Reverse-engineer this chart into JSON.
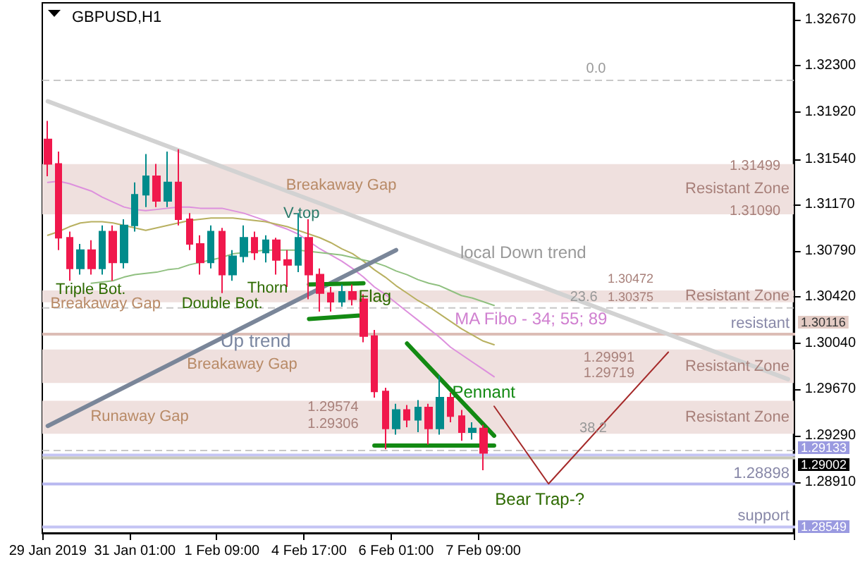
{
  "chart_data": {
    "type": "candlestick",
    "title": "GBPUSD,H1",
    "categories": [
      "29 Jan 2019",
      null,
      null,
      null,
      null,
      null,
      null,
      null,
      "31 Jan 01:00",
      null,
      null,
      null,
      null,
      null,
      null,
      null,
      "1 Feb 09:00",
      null,
      null,
      null,
      null,
      null,
      null,
      null,
      "4 Feb 17:00",
      null,
      null,
      null,
      null,
      null,
      null,
      null,
      "6 Feb 01:00",
      null,
      null,
      null,
      null,
      null,
      null,
      null,
      "7 Feb 09:00",
      null,
      null,
      null,
      null,
      null,
      null,
      null,
      null,
      null,
      null,
      null,
      null,
      null,
      null,
      null,
      null,
      null,
      null,
      null,
      null,
      null,
      null,
      null,
      null,
      null,
      null,
      null,
      null
    ],
    "ohlc": [
      [
        1.317,
        1.3185,
        1.314,
        1.315
      ],
      [
        1.315,
        1.316,
        1.308,
        1.309
      ],
      [
        1.309,
        1.3095,
        1.3055,
        1.3065
      ],
      [
        1.3065,
        1.3085,
        1.306,
        1.308
      ],
      [
        1.308,
        1.3088,
        1.306,
        1.3065
      ],
      [
        1.3065,
        1.31,
        1.306,
        1.3095
      ],
      [
        1.3095,
        1.31,
        1.3055,
        1.307
      ],
      [
        1.307,
        1.3105,
        1.3065,
        1.31
      ],
      [
        1.31,
        1.3135,
        1.3095,
        1.3125
      ],
      [
        1.3125,
        1.3158,
        1.3115,
        1.314
      ],
      [
        1.314,
        1.315,
        1.3115,
        1.312
      ],
      [
        1.312,
        1.316,
        1.3115,
        1.3135
      ],
      [
        1.3135,
        1.3162,
        1.31,
        1.3105
      ],
      [
        1.3105,
        1.311,
        1.308,
        1.3085
      ],
      [
        1.3085,
        1.3092,
        1.306,
        1.307
      ],
      [
        1.307,
        1.31,
        1.3065,
        1.3095
      ],
      [
        1.3095,
        1.3098,
        1.3045,
        1.306
      ],
      [
        1.306,
        1.308,
        1.3055,
        1.3075
      ],
      [
        1.3075,
        1.31,
        1.307,
        1.309
      ],
      [
        1.309,
        1.3095,
        1.3072,
        1.3078
      ],
      [
        1.3078,
        1.3092,
        1.307,
        1.3088
      ],
      [
        1.3088,
        1.309,
        1.306,
        1.3072
      ],
      [
        1.3072,
        1.308,
        1.305,
        1.3068
      ],
      [
        1.3068,
        1.311,
        1.3062,
        1.309
      ],
      [
        1.309,
        1.3105,
        1.304,
        1.306
      ],
      [
        1.306,
        1.3065,
        1.303,
        1.3045
      ],
      [
        1.3045,
        1.305,
        1.303,
        1.3038
      ],
      [
        1.3038,
        1.3052,
        1.3034,
        1.3046
      ],
      [
        1.3046,
        1.3052,
        1.3035,
        1.304
      ],
      [
        1.304,
        1.3044,
        1.3005,
        1.301
      ],
      [
        1.301,
        1.3015,
        1.296,
        1.2965
      ],
      [
        1.2965,
        1.2968,
        1.2918,
        1.2935
      ],
      [
        1.2935,
        1.2955,
        1.293,
        1.295
      ],
      [
        1.295,
        1.2954,
        1.2936,
        1.2942
      ],
      [
        1.2942,
        1.2958,
        1.2932,
        1.2952
      ],
      [
        1.2952,
        1.2955,
        1.2922,
        1.2935
      ],
      [
        1.2935,
        1.2978,
        1.293,
        1.296
      ],
      [
        1.296,
        1.2964,
        1.294,
        1.2945
      ],
      [
        1.2945,
        1.295,
        1.2925,
        1.2932
      ],
      [
        1.2932,
        1.294,
        1.2926,
        1.2935
      ],
      [
        1.2935,
        1.2938,
        1.2901,
        1.2915
      ],
      null,
      null,
      null,
      null,
      null,
      null,
      null,
      null,
      null,
      null,
      null,
      null,
      null,
      null,
      null,
      null,
      null,
      null,
      null,
      null,
      null,
      null,
      null,
      null,
      null,
      null,
      null,
      null
    ],
    "colors": [
      "#f0184c",
      "#f0184c",
      "#f0184c",
      "#008b8b",
      "#f0184c",
      "#008b8b",
      "#f0184c",
      "#008b8b",
      "#008b8b",
      "#008b8b",
      "#f0184c",
      "#008b8b",
      "#f0184c",
      "#f0184c",
      "#f0184c",
      "#008b8b",
      "#f0184c",
      "#008b8b",
      "#008b8b",
      "#f0184c",
      "#008b8b",
      "#f0184c",
      "#f0184c",
      "#008b8b",
      "#f0184c",
      "#f0184c",
      "#f0184c",
      "#008b8b",
      "#f0184c",
      "#f0184c",
      "#f0184c",
      "#f0184c",
      "#008b8b",
      "#f0184c",
      "#008b8b",
      "#f0184c",
      "#008b8b",
      "#f0184c",
      "#f0184c",
      "#008b8b",
      "#f0184c",
      null,
      null,
      null,
      null,
      null,
      null,
      null,
      null,
      null,
      null,
      null,
      null,
      null,
      null,
      null,
      null,
      null,
      null,
      null,
      null,
      null,
      null,
      null,
      null,
      null,
      null,
      null,
      null
    ],
    "series": [
      {
        "type": "line",
        "color": "#dd90dd",
        "values": [
          1.3135,
          1.3136,
          1.3134,
          1.3131,
          1.3128,
          1.3123,
          1.3119,
          1.3115,
          1.3113,
          1.3112,
          1.3113,
          1.3114,
          1.3115,
          1.3115,
          1.3114,
          1.3114,
          1.3114,
          1.3112,
          1.311,
          1.3107,
          1.3104,
          1.31,
          1.3097,
          1.3093,
          1.3087,
          1.3081,
          1.3076,
          1.3071,
          1.3065,
          1.3058,
          1.305,
          1.3044,
          1.3037,
          1.303,
          1.3023,
          1.3016,
          1.3009,
          1.3001,
          1.2995,
          1.2989,
          1.2983,
          1.2977,
          null,
          null,
          null,
          null,
          null,
          null,
          null,
          null,
          null,
          null,
          null,
          null,
          null,
          null,
          null,
          null,
          null,
          null,
          null,
          null,
          null,
          null,
          null,
          null,
          null,
          null,
          null
        ]
      },
      {
        "type": "line",
        "color": "#b8b060",
        "values": [
          1.3092,
          1.3095,
          1.3099,
          1.3102,
          1.3103,
          1.3103,
          1.3102,
          1.31,
          1.3098,
          1.3096,
          1.3098,
          1.31,
          1.3102,
          1.3104,
          1.3105,
          1.3106,
          1.3106,
          1.3106,
          1.3105,
          1.3104,
          1.3103,
          1.3101,
          1.3099,
          1.3096,
          1.3093,
          1.309,
          1.3086,
          1.3081,
          1.3077,
          1.3071,
          1.3064,
          1.3058,
          1.3051,
          1.3045,
          1.3039,
          1.3034,
          1.3028,
          1.3022,
          1.3016,
          1.3011,
          1.3006,
          1.3003,
          null,
          null,
          null,
          null,
          null,
          null,
          null,
          null,
          null,
          null,
          null,
          null,
          null,
          null,
          null,
          null,
          null,
          null,
          null,
          null,
          null,
          null,
          null,
          null,
          null,
          null,
          null
        ]
      },
      {
        "type": "line",
        "color": "#90c080",
        "values": [
          null,
          null,
          null,
          null,
          1.3053,
          1.3054,
          1.3055,
          1.3058,
          1.306,
          1.3061,
          1.3062,
          1.3064,
          1.3065,
          1.3068,
          1.307,
          1.3072,
          1.3074,
          1.3077,
          1.3078,
          1.3079,
          1.308,
          1.308,
          1.308,
          1.308,
          1.3079,
          1.3078,
          1.3077,
          1.3076,
          1.3074,
          1.3072,
          1.307,
          1.3067,
          1.3063,
          1.306,
          1.3056,
          1.3053,
          1.3051,
          1.3047,
          1.3043,
          1.3041,
          1.3038,
          1.3035,
          null,
          null,
          null,
          null,
          null,
          null,
          null,
          null,
          null,
          null,
          null,
          null,
          null,
          null,
          null,
          null,
          null,
          null,
          null,
          null,
          null,
          null,
          null,
          null,
          null,
          null,
          null
        ]
      },
      {
        "type": "line",
        "color": "#d2d2d2",
        "values": [
          1.3201,
          null,
          null,
          null,
          null,
          null,
          null,
          null,
          null,
          null,
          null,
          null,
          null,
          null,
          null,
          null,
          null,
          null,
          null,
          null,
          null,
          null,
          null,
          null,
          null,
          null,
          null,
          null,
          null,
          null,
          null,
          null,
          null,
          null,
          null,
          null,
          null,
          null,
          null,
          null,
          null,
          null,
          null,
          null,
          null,
          null,
          null,
          null,
          null,
          null,
          null,
          null,
          null,
          null,
          null,
          null,
          null,
          null,
          null,
          null,
          null,
          null,
          null,
          null,
          null,
          null,
          null,
          null,
          1.2975
        ]
      },
      {
        "type": "line",
        "color": "#7a8699",
        "values": [
          1.2937,
          null,
          null,
          null,
          null,
          null,
          null,
          null,
          null,
          null,
          null,
          null,
          null,
          null,
          null,
          null,
          null,
          null,
          null,
          null,
          null,
          null,
          null,
          null,
          null,
          null,
          null,
          null,
          null,
          null,
          null,
          null,
          1.308,
          null,
          null,
          null,
          null,
          null,
          null,
          null,
          null,
          null,
          null,
          null,
          null,
          null,
          null,
          null,
          null,
          null,
          null,
          null,
          null,
          null,
          null,
          null,
          null,
          null,
          null,
          null,
          null,
          null,
          null,
          null,
          null,
          null,
          null,
          null,
          null
        ]
      },
      {
        "type": "line",
        "color": "#138a13",
        "values": [
          null,
          null,
          null,
          null,
          null,
          null,
          null,
          null,
          null,
          null,
          null,
          null,
          null,
          null,
          null,
          null,
          null,
          null,
          null,
          null,
          null,
          null,
          null,
          null,
          1.3052,
          null,
          null,
          null,
          null,
          1.3053,
          null,
          null,
          null,
          null,
          null,
          null,
          null,
          null,
          null,
          null,
          null,
          null,
          null,
          null,
          null,
          null,
          null,
          null,
          null,
          null,
          null,
          null,
          null,
          null,
          null,
          null,
          null,
          null,
          null,
          null,
          null,
          null,
          null,
          null,
          null,
          null,
          null,
          null,
          null
        ]
      },
      {
        "type": "line",
        "color": "#138a13",
        "values": [
          null,
          null,
          null,
          null,
          null,
          null,
          null,
          null,
          null,
          null,
          null,
          null,
          null,
          null,
          null,
          null,
          null,
          null,
          null,
          null,
          null,
          null,
          null,
          null,
          1.3024,
          null,
          null,
          null,
          null,
          1.3027,
          null,
          null,
          null,
          null,
          null,
          null,
          null,
          null,
          null,
          null,
          null,
          null,
          null,
          null,
          null,
          null,
          null,
          null,
          null,
          null,
          null,
          null,
          null,
          null,
          null,
          null,
          null,
          null,
          null,
          null,
          null,
          null,
          null,
          null,
          null,
          null,
          null,
          null,
          null
        ]
      },
      {
        "type": "line",
        "color": "#138a13",
        "values": [
          null,
          null,
          null,
          null,
          null,
          null,
          null,
          null,
          null,
          null,
          null,
          null,
          null,
          null,
          null,
          null,
          null,
          null,
          null,
          null,
          null,
          null,
          null,
          null,
          null,
          null,
          null,
          null,
          null,
          null,
          null,
          null,
          null,
          1.3004,
          null,
          null,
          null,
          null,
          null,
          null,
          null,
          1.2929,
          null,
          null,
          null,
          null,
          null,
          null,
          null,
          null,
          null,
          null,
          null,
          null,
          null,
          null,
          null,
          null,
          null,
          null,
          null,
          null,
          null,
          null,
          null,
          null,
          null,
          null,
          null
        ]
      },
      {
        "type": "line",
        "color": "#138a13",
        "values": [
          null,
          null,
          null,
          null,
          null,
          null,
          null,
          null,
          null,
          null,
          null,
          null,
          null,
          null,
          null,
          null,
          null,
          null,
          null,
          null,
          null,
          null,
          null,
          null,
          null,
          null,
          null,
          null,
          null,
          null,
          1.2921,
          null,
          null,
          null,
          null,
          null,
          null,
          null,
          null,
          null,
          null,
          1.2921,
          null,
          null,
          null,
          null,
          null,
          null,
          null,
          null,
          null,
          null,
          null,
          null,
          null,
          null,
          null,
          null,
          null,
          null,
          null,
          null,
          null,
          null,
          null,
          null,
          null,
          null,
          null
        ]
      },
      {
        "type": "line",
        "color": "#a52a2a",
        "values": [
          null,
          null,
          null,
          null,
          null,
          null,
          null,
          null,
          null,
          null,
          null,
          null,
          null,
          null,
          null,
          null,
          null,
          null,
          null,
          null,
          null,
          null,
          null,
          null,
          null,
          null,
          null,
          null,
          null,
          null,
          null,
          null,
          null,
          null,
          null,
          null,
          null,
          null,
          null,
          null,
          null,
          1.2953,
          null,
          null,
          null,
          null,
          1.289,
          null,
          null,
          null,
          null,
          null,
          null,
          null,
          null,
          null,
          null,
          1.2997,
          null,
          null,
          null,
          null,
          null,
          null,
          null,
          null,
          null,
          null,
          null
        ]
      }
    ],
    "ylim": [
      1.285,
      1.3281
    ],
    "yticks": [
      {
        "value": 1.2891,
        "label": "1.28910"
      },
      {
        "value": 1.2929,
        "label": "1.29290"
      },
      {
        "value": 1.2967,
        "label": "1.29670"
      },
      {
        "value": 1.3004,
        "label": "1.30040"
      },
      {
        "value": 1.3042,
        "label": "1.30420"
      },
      {
        "value": 1.3079,
        "label": "1.30790"
      },
      {
        "value": 1.3117,
        "label": "1.31170"
      },
      {
        "value": 1.3154,
        "label": "1.31540"
      },
      {
        "value": 1.3192,
        "label": "1.31920"
      },
      {
        "value": 1.323,
        "label": "1.32300"
      },
      {
        "value": 1.3267,
        "label": "1.32670"
      }
    ],
    "bands": [
      {
        "axis": "y",
        "from": 1.3109,
        "to": 1.31499,
        "label": "Resistant Zone",
        "color": "#efe0de"
      },
      {
        "axis": "y",
        "from": 1.30375,
        "to": 1.30472,
        "label": "Resistant Zone",
        "color": "#efe0de"
      },
      {
        "axis": "y",
        "from": 1.29719,
        "to": 1.29991,
        "label": "Resistant Zone",
        "color": "#efe0de"
      },
      {
        "axis": "y",
        "from": 1.29306,
        "to": 1.29574,
        "label": "Resistant Zone",
        "color": "#efe0de"
      }
    ],
    "ref_lines": [
      {
        "axis": "y",
        "value": 1.3218,
        "color": "#c8c8c8",
        "line_style": "dashed"
      },
      {
        "axis": "y",
        "value": 1.3033,
        "color": "#c8c8c8",
        "line_style": "dashed"
      },
      {
        "axis": "y",
        "value": 1.2917,
        "color": "#c8c8c8",
        "line_style": "dashed"
      },
      {
        "axis": "y",
        "value": 1.30116,
        "label": "resistant",
        "color": "#dcbdb6"
      },
      {
        "axis": "y",
        "value": 1.29133,
        "color": "#c4c4f4"
      },
      {
        "axis": "y",
        "value": 1.2911,
        "color": "#c8c8b8"
      },
      {
        "axis": "y",
        "value": 1.28898,
        "label": "1.28898",
        "color": "#b8b8f0"
      },
      {
        "axis": "y",
        "value": 1.28549,
        "label": "support",
        "color": "#c4c4f4"
      }
    ],
    "annotations": [
      "Triple Bot.",
      "Breakaway Gap",
      "Double Bot.",
      "Thorn",
      "V-top",
      "Breakaway Gap",
      "Flag",
      "Up trend",
      "Breakaway Gap",
      "Runaway Gap",
      "1.29574",
      "1.29306",
      "Pennant",
      "local Down trend",
      "MA Fibo - 34; 55; 89",
      "0.0",
      "23.6",
      "1.30472",
      "1.30375",
      "38.2",
      "1.31499",
      "1.31090",
      "1.29991",
      "1.29719",
      "Bear Trap-?",
      "1.30116",
      "1.29133",
      "1.29002",
      "1.28549"
    ]
  }
}
